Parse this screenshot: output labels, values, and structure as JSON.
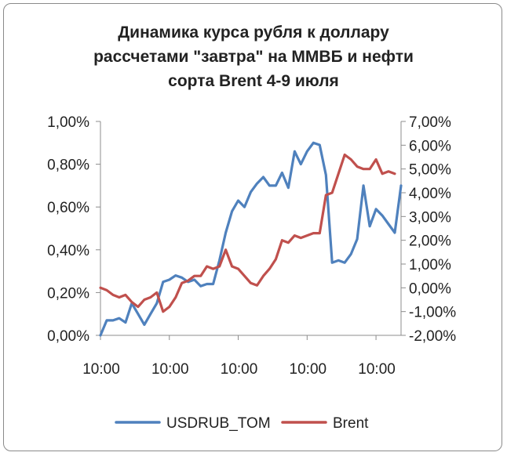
{
  "chart_data": {
    "type": "line",
    "title_lines": [
      "Динамика курса  рубля к доллару",
      "рассчетами \"завтра\" на ММВБ и нефти",
      "сорта Brent 4-9 июля"
    ],
    "x_tick_labels": [
      "10:00",
      "10:00",
      "10:00",
      "10:00",
      "10:00"
    ],
    "x_tick_indices": [
      0,
      11,
      22,
      33,
      44
    ],
    "y_left": {
      "ticks": [
        "0,00%",
        "0,20%",
        "0,40%",
        "0,60%",
        "0,80%",
        "1,00%"
      ],
      "ylim": [
        0,
        1.0
      ]
    },
    "y_right": {
      "ticks": [
        "-2,00%",
        "-1,00%",
        "0,00%",
        "1,00%",
        "2,00%",
        "3,00%",
        "4,00%",
        "5,00%",
        "6,00%",
        "7,00%"
      ],
      "ylim": [
        -2,
        7
      ]
    },
    "legend": "bottom",
    "series": [
      {
        "name": "USDRUB_TOM",
        "axis": "left",
        "color": "#4f81bd",
        "values": [
          0.0,
          0.07,
          0.07,
          0.08,
          0.06,
          0.15,
          0.1,
          0.05,
          0.1,
          0.15,
          0.25,
          0.26,
          0.28,
          0.27,
          0.25,
          0.26,
          0.23,
          0.24,
          0.24,
          0.35,
          0.48,
          0.58,
          0.63,
          0.6,
          0.67,
          0.71,
          0.74,
          0.7,
          0.7,
          0.76,
          0.69,
          0.86,
          0.8,
          0.86,
          0.9,
          0.89,
          0.75,
          0.34,
          0.35,
          0.34,
          0.38,
          0.45,
          0.7,
          0.51,
          0.59,
          0.56,
          0.52,
          0.48,
          0.7
        ]
      },
      {
        "name": "Brent",
        "axis": "right",
        "color": "#c0504d",
        "values": [
          0.0,
          -0.1,
          -0.3,
          -0.4,
          -0.3,
          -0.6,
          -0.8,
          -0.5,
          -0.4,
          -0.2,
          -1.0,
          -0.8,
          -0.4,
          0.2,
          0.3,
          0.5,
          0.5,
          0.9,
          0.8,
          0.9,
          1.6,
          0.9,
          0.8,
          0.5,
          0.2,
          0.1,
          0.5,
          0.8,
          1.2,
          2.0,
          1.9,
          2.2,
          2.1,
          2.2,
          2.3,
          2.3,
          3.9,
          4.0,
          4.8,
          5.6,
          5.4,
          5.1,
          5.0,
          5.0,
          5.4,
          4.8,
          4.9,
          4.8
        ]
      }
    ]
  }
}
